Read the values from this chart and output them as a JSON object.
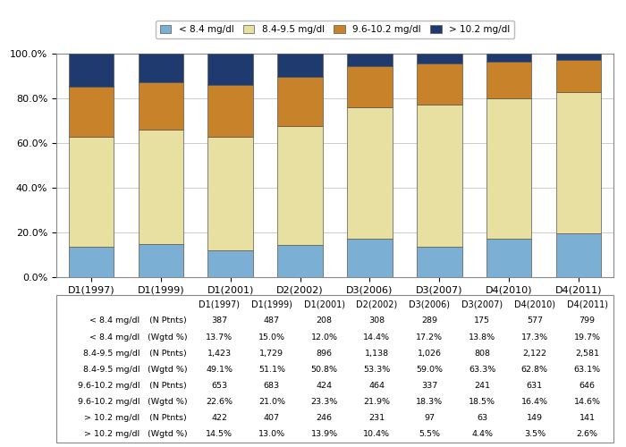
{
  "categories": [
    "D1(1997)",
    "D1(1999)",
    "D1(2001)",
    "D2(2002)",
    "D3(2006)",
    "D3(2007)",
    "D4(2010)",
    "D4(2011)"
  ],
  "series": {
    "< 8.4 mg/dl": [
      13.7,
      15.0,
      12.0,
      14.4,
      17.2,
      13.8,
      17.3,
      19.7
    ],
    "8.4-9.5 mg/dl": [
      49.1,
      51.1,
      50.8,
      53.3,
      59.0,
      63.3,
      62.8,
      63.1
    ],
    "9.6-10.2 mg/dl": [
      22.6,
      21.0,
      23.3,
      21.9,
      18.3,
      18.5,
      16.4,
      14.6
    ],
    "> 10.2 mg/dl": [
      14.5,
      13.0,
      13.9,
      10.4,
      5.5,
      4.4,
      3.5,
      2.6
    ]
  },
  "colors": {
    "< 8.4 mg/dl": "#7bafd4",
    "8.4-9.5 mg/dl": "#e8e0a0",
    "9.6-10.2 mg/dl": "#c8822a",
    "> 10.2 mg/dl": "#1e3a6e"
  },
  "table_data": [
    [
      "< 8.4 mg/dl",
      "(N Ptnts)",
      "387",
      "487",
      "208",
      "308",
      "289",
      "175",
      "577",
      "799"
    ],
    [
      "< 8.4 mg/dl",
      "(Wgtd %)",
      "13.7%",
      "15.0%",
      "12.0%",
      "14.4%",
      "17.2%",
      "13.8%",
      "17.3%",
      "19.7%"
    ],
    [
      "8.4-9.5 mg/dl",
      "(N Ptnts)",
      "1,423",
      "1,729",
      "896",
      "1,138",
      "1,026",
      "808",
      "2,122",
      "2,581"
    ],
    [
      "8.4-9.5 mg/dl",
      "(Wgtd %)",
      "49.1%",
      "51.1%",
      "50.8%",
      "53.3%",
      "59.0%",
      "63.3%",
      "62.8%",
      "63.1%"
    ],
    [
      "9.6-10.2 mg/dl",
      "(N Ptnts)",
      "653",
      "683",
      "424",
      "464",
      "337",
      "241",
      "631",
      "646"
    ],
    [
      "9.6-10.2 mg/dl",
      "(Wgtd %)",
      "22.6%",
      "21.0%",
      "23.3%",
      "21.9%",
      "18.3%",
      "18.5%",
      "16.4%",
      "14.6%"
    ],
    [
      "> 10.2 mg/dl",
      "(N Ptnts)",
      "422",
      "407",
      "246",
      "231",
      "97",
      "63",
      "149",
      "141"
    ],
    [
      "> 10.2 mg/dl",
      "(Wgtd %)",
      "14.5%",
      "13.0%",
      "13.9%",
      "10.4%",
      "5.5%",
      "4.4%",
      "3.5%",
      "2.6%"
    ]
  ],
  "legend_order": [
    "< 8.4 mg/dl",
    "8.4-9.5 mg/dl",
    "9.6-10.2 mg/dl",
    "> 10.2 mg/dl"
  ],
  "bar_edge_color": "#555555",
  "bar_width": 0.65,
  "background_color": "#ffffff",
  "grid_color": "#cccccc",
  "border_color": "#888888"
}
